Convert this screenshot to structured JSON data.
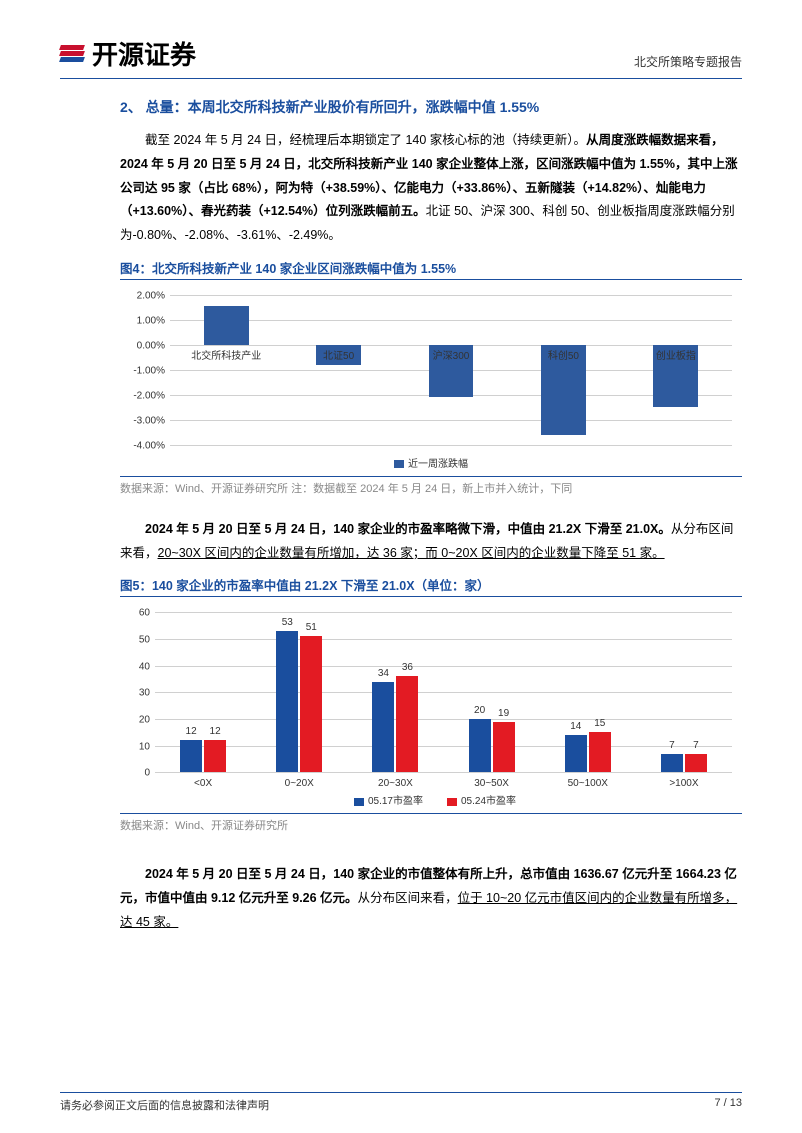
{
  "header": {
    "company_name": "开源证券",
    "report_type": "北交所策略专题报告",
    "logo_colors": [
      "#c8102e",
      "#c8102e",
      "#1a4e9e"
    ]
  },
  "section2": {
    "title": "2、 总量：本周北交所科技新产业股价有所回升，涨跌幅中值 1.55%",
    "para1_a": "截至 2024 年 5 月 24 日，经梳理后本期锁定了 140 家核心标的池（持续更新）。",
    "para1_b": "从周度涨跌幅数据来看，2024 年 5 月 20 日至 5 月 24 日，北交所科技新产业 140 家企业整体上涨，区间涨跌幅中值为 1.55%，其中上涨公司达 95 家（占比 68%），阿为特（+38.59%）、亿能电力（+33.86%）、五新隧装（+14.82%）、灿能电力（+13.60%）、春光药装（+12.54%）位列涨跌幅前五。",
    "para1_c": "北证 50、沪深 300、科创 50、创业板指周度涨跌幅分别为-0.80%、-2.08%、-3.61%、-2.49%。"
  },
  "figure4": {
    "title": "图4：北交所科技新产业 140 家企业区间涨跌幅中值为 1.55%",
    "type": "bar",
    "categories": [
      "北交所科技产业",
      "北证50",
      "沪深300",
      "科创50",
      "创业板指"
    ],
    "values": [
      1.55,
      -0.8,
      -2.08,
      -3.61,
      -2.49
    ],
    "ylim": [
      -4.0,
      2.0
    ],
    "ytick_step": 1.0,
    "ytick_labels": [
      "2.00%",
      "1.00%",
      "0.00%",
      "-1.00%",
      "-2.00%",
      "-3.00%",
      "-4.00%"
    ],
    "bar_color": "#2e5a9e",
    "grid_color": "#d0d0d0",
    "background_color": "#ffffff",
    "legend_label": "近一周涨跌幅",
    "source": "数据来源：Wind、开源证券研究所    注：数据截至 2024 年 5 月 24 日，新上市并入统计，下同"
  },
  "para2": {
    "a": "2024 年 5 月 20 日至 5 月 24 日，140 家企业的市盈率略微下滑，中值由 21.2X 下滑至 21.0X。",
    "b": "从分布区间来看，",
    "c": "20~30X 区间内的企业数量有所增加，达 36 家；而 0~20X 区间内的企业数量下降至 51 家。"
  },
  "figure5": {
    "title": "图5：140 家企业的市盈率中值由 21.2X 下滑至 21.0X（单位：家）",
    "type": "grouped_bar",
    "categories": [
      "<0X",
      "0~20X",
      "20~30X",
      "30~50X",
      "50~100X",
      ">100X"
    ],
    "series": [
      {
        "name": "05.17市盈率",
        "color": "#1a4e9e",
        "values": [
          12,
          53,
          34,
          20,
          14,
          7
        ]
      },
      {
        "name": "05.24市盈率",
        "color": "#e31b23",
        "values": [
          12,
          51,
          36,
          19,
          15,
          7
        ]
      }
    ],
    "ylim": [
      0,
      60
    ],
    "ytick_step": 10,
    "ytick_labels": [
      "0",
      "10",
      "20",
      "30",
      "40",
      "50",
      "60"
    ],
    "grid_color": "#d0d0d0",
    "background_color": "#ffffff",
    "source": "数据来源：Wind、开源证券研究所"
  },
  "para3": {
    "a": "2024 年 5 月 20 日至 5 月 24 日，140 家企业的市值整体有所上升，总市值由 1636.67 亿元升至 1664.23 亿元，市值中值由 9.12 亿元升至 9.26 亿元。",
    "b": "从分布区间来看，",
    "c": "位于 10~20 亿元市值区间内的企业数量有所增多，达 45 家。"
  },
  "footer": {
    "disclaimer": "请务必参阅正文后面的信息披露和法律声明",
    "page": "7 / 13"
  }
}
